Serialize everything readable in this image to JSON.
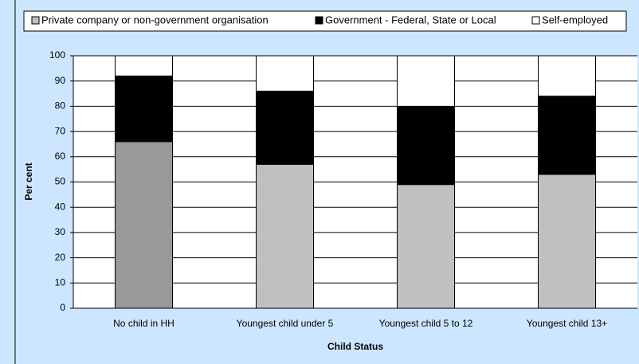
{
  "chart_data": {
    "type": "stacked_bar",
    "categories": [
      "No child in HH",
      "Youngest child under 5",
      "Youngest child 5 to 12",
      "Youngest child 13+"
    ],
    "series": [
      {
        "name": "Private company or non-government organisation",
        "color": "#c0c0c0",
        "colors": [
          "#999999",
          "#c0c0c0",
          "#c0c0c0",
          "#c0c0c0"
        ],
        "values": [
          66,
          57,
          49,
          53
        ]
      },
      {
        "name": "Government - Federal, State or Local",
        "color": "#000000",
        "values": [
          26,
          29,
          31,
          31
        ]
      },
      {
        "name": "Self-employed",
        "color": "#ffffff",
        "values": [
          8,
          14,
          20,
          16
        ]
      }
    ],
    "xlabel": "Child Status",
    "ylabel": "Per cent",
    "ylim": [
      0,
      100
    ],
    "yticks": [
      0,
      10,
      20,
      30,
      40,
      50,
      60,
      70,
      80,
      90,
      100
    ],
    "grid": true,
    "legend": "top"
  }
}
